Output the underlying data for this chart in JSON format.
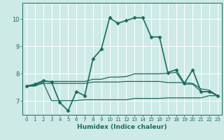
{
  "xlabel": "Humidex (Indice chaleur)",
  "bg_color": "#ceeae6",
  "grid_color": "#ffffff",
  "line_color": "#1a6b5e",
  "xlim": [
    -0.5,
    23.5
  ],
  "ylim": [
    6.5,
    10.6
  ],
  "xticks": [
    0,
    1,
    2,
    3,
    4,
    5,
    6,
    7,
    8,
    9,
    10,
    11,
    12,
    13,
    14,
    15,
    16,
    17,
    18,
    19,
    20,
    21,
    22,
    23
  ],
  "yticks": [
    7,
    8,
    9,
    10
  ],
  "series": [
    {
      "x": [
        0,
        1,
        2,
        3,
        4,
        5,
        6,
        7,
        8,
        9,
        10,
        11,
        12,
        13,
        14,
        15,
        16,
        17,
        18,
        19,
        20,
        21,
        22,
        23
      ],
      "y": [
        7.55,
        7.62,
        7.75,
        7.7,
        6.95,
        6.65,
        7.35,
        7.2,
        8.55,
        8.9,
        10.05,
        9.85,
        9.95,
        10.05,
        10.05,
        9.35,
        9.35,
        8.05,
        8.15,
        7.65,
        8.15,
        7.35,
        7.35,
        7.2
      ],
      "marker": "D",
      "markersize": 2.5,
      "linewidth": 1.2
    },
    {
      "x": [
        0,
        1,
        2,
        3,
        4,
        5,
        6,
        7,
        8,
        9,
        10,
        11,
        12,
        13,
        14,
        15,
        16,
        17,
        18,
        19,
        20,
        21,
        22,
        23
      ],
      "y": [
        7.55,
        7.6,
        7.72,
        7.72,
        7.72,
        7.72,
        7.72,
        7.72,
        7.8,
        7.8,
        7.88,
        7.88,
        7.9,
        8.0,
        8.0,
        8.0,
        8.0,
        8.02,
        8.05,
        7.62,
        7.62,
        7.35,
        7.35,
        7.2
      ],
      "marker": null,
      "markersize": 0,
      "linewidth": 0.9
    },
    {
      "x": [
        0,
        1,
        2,
        3,
        4,
        5,
        6,
        7,
        8,
        9,
        10,
        11,
        12,
        13,
        14,
        15,
        16,
        17,
        18,
        19,
        20,
        21,
        22,
        23
      ],
      "y": [
        7.55,
        7.55,
        7.68,
        7.02,
        7.02,
        7.02,
        7.02,
        7.05,
        7.05,
        7.05,
        7.05,
        7.05,
        7.05,
        7.1,
        7.1,
        7.1,
        7.1,
        7.12,
        7.12,
        7.12,
        7.12,
        7.12,
        7.2,
        7.2
      ],
      "marker": null,
      "markersize": 0,
      "linewidth": 0.9
    },
    {
      "x": [
        0,
        1,
        2,
        3,
        4,
        5,
        6,
        7,
        8,
        9,
        10,
        11,
        12,
        13,
        14,
        15,
        16,
        17,
        18,
        19,
        20,
        21,
        22,
        23
      ],
      "y": [
        7.55,
        7.58,
        7.65,
        7.65,
        7.65,
        7.65,
        7.65,
        7.65,
        7.7,
        7.7,
        7.7,
        7.7,
        7.72,
        7.72,
        7.72,
        7.72,
        7.72,
        7.68,
        7.68,
        7.68,
        7.65,
        7.45,
        7.4,
        7.2
      ],
      "marker": null,
      "markersize": 0,
      "linewidth": 0.9
    }
  ]
}
